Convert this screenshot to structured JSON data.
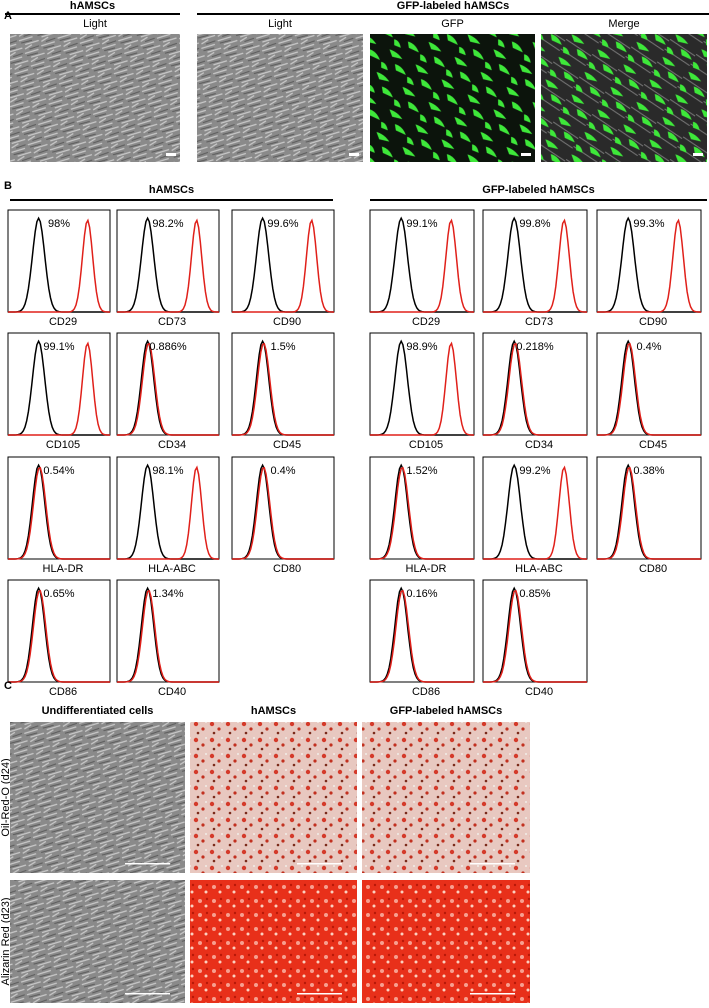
{
  "panel_a": {
    "label": "A",
    "groups": [
      {
        "title": "hAMSCs",
        "images": [
          "Light"
        ]
      },
      {
        "title": "GFP-labeled hAMSCs",
        "images": [
          "Light",
          "GFP",
          "Merge"
        ]
      }
    ]
  },
  "panel_b": {
    "label": "B",
    "groups": [
      {
        "title": "hAMSCs",
        "plots": [
          {
            "marker": "CD29",
            "percent": "98%"
          },
          {
            "marker": "CD73",
            "percent": "98.2%"
          },
          {
            "marker": "CD90",
            "percent": "99.6%"
          },
          {
            "marker": "CD105",
            "percent": "99.1%"
          },
          {
            "marker": "CD34",
            "percent": "0.886%"
          },
          {
            "marker": "CD45",
            "percent": "1.5%"
          },
          {
            "marker": "HLA-DR",
            "percent": "0.54%"
          },
          {
            "marker": "HLA-ABC",
            "percent": "98.1%"
          },
          {
            "marker": "CD80",
            "percent": "0.4%"
          },
          {
            "marker": "CD86",
            "percent": "0.65%"
          },
          {
            "marker": "CD40",
            "percent": "1.34%"
          }
        ]
      },
      {
        "title": "GFP-labeled hAMSCs",
        "plots": [
          {
            "marker": "CD29",
            "percent": "99.1%"
          },
          {
            "marker": "CD73",
            "percent": "99.8%"
          },
          {
            "marker": "CD90",
            "percent": "99.3%"
          },
          {
            "marker": "CD105",
            "percent": "98.9%"
          },
          {
            "marker": "CD34",
            "percent": "0.218%"
          },
          {
            "marker": "CD45",
            "percent": "0.4%"
          },
          {
            "marker": "HLA-DR",
            "percent": "1.52%"
          },
          {
            "marker": "HLA-ABC",
            "percent": "99.2%"
          },
          {
            "marker": "CD80",
            "percent": "0.38%"
          },
          {
            "marker": "CD86",
            "percent": "0.16%"
          },
          {
            "marker": "CD40",
            "percent": "0.85%"
          }
        ]
      }
    ]
  },
  "panel_c": {
    "label": "C",
    "columns": [
      "Undifferentiated cells",
      "hAMSCs",
      "GFP-labeled hAMSCs"
    ],
    "rows": [
      "Oil-Red-O (d24)",
      "Alizarin Red (d23)"
    ]
  }
}
